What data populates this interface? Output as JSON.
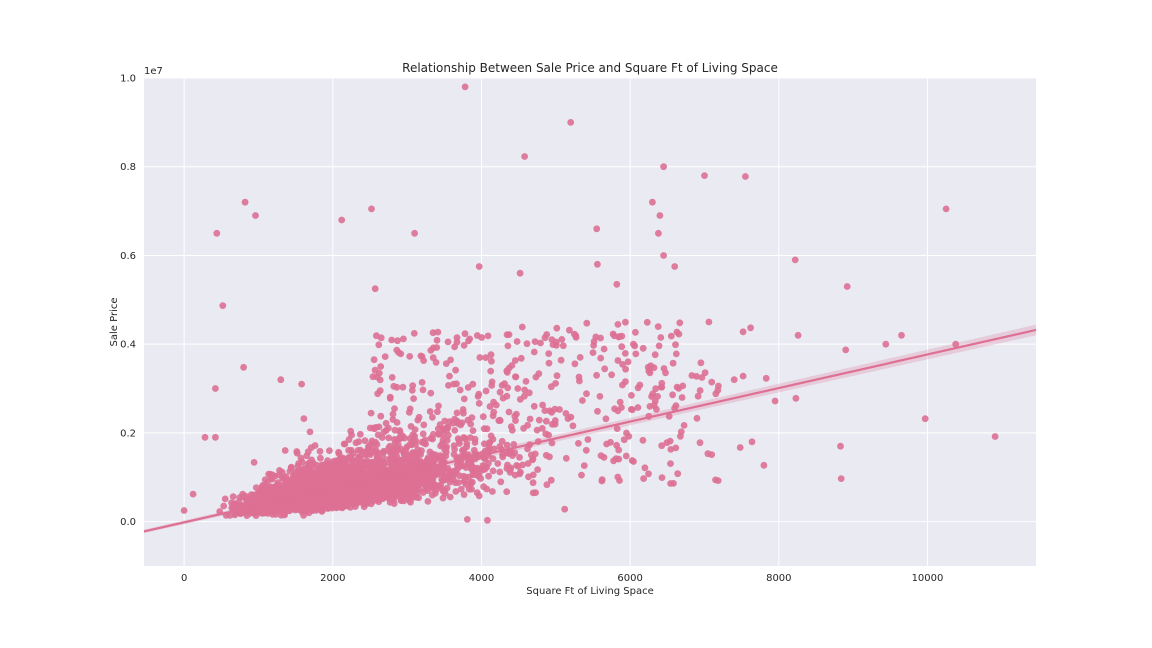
{
  "chart_data": {
    "type": "scatter",
    "title": "Relationship Between Sale Price and Square Ft of Living Space",
    "xlabel": "Square Ft of Living Space",
    "ylabel": "Sale Price",
    "y_multiplier_label": "1e7",
    "xlim": [
      -540,
      11460
    ],
    "ylim": [
      -0.1,
      1.0
    ],
    "x_ticks": [
      0,
      2000,
      4000,
      6000,
      8000,
      10000
    ],
    "y_ticks": [
      0.0,
      0.2,
      0.4,
      0.6,
      0.8,
      1.0
    ],
    "y_tick_labels": [
      "0.0",
      "0.2",
      "0.4",
      "0.6",
      "0.8",
      "1.0"
    ],
    "grid": true,
    "point_color": "#dd7093",
    "line_color": "#dd7093",
    "background_color": "#eaeaf2",
    "regression_line": {
      "x": [
        -540,
        11460
      ],
      "y": [
        -0.022,
        0.432
      ]
    },
    "regression_ci_halfwidth": [
      0.004,
      0.012
    ],
    "outlier_points": [
      {
        "x": 3780,
        "y": 0.98
      },
      {
        "x": 5200,
        "y": 0.9
      },
      {
        "x": 4580,
        "y": 0.823
      },
      {
        "x": 6450,
        "y": 0.8
      },
      {
        "x": 7000,
        "y": 0.78
      },
      {
        "x": 7550,
        "y": 0.778
      },
      {
        "x": 820,
        "y": 0.72
      },
      {
        "x": 960,
        "y": 0.69
      },
      {
        "x": 2520,
        "y": 0.705
      },
      {
        "x": 2120,
        "y": 0.68
      },
      {
        "x": 440,
        "y": 0.65
      },
      {
        "x": 3100,
        "y": 0.65
      },
      {
        "x": 6300,
        "y": 0.72
      },
      {
        "x": 6400,
        "y": 0.69
      },
      {
        "x": 6380,
        "y": 0.65
      },
      {
        "x": 5550,
        "y": 0.66
      },
      {
        "x": 6450,
        "y": 0.6
      },
      {
        "x": 6600,
        "y": 0.575
      },
      {
        "x": 5560,
        "y": 0.58
      },
      {
        "x": 10250,
        "y": 0.705
      },
      {
        "x": 8220,
        "y": 0.59
      },
      {
        "x": 8920,
        "y": 0.53
      },
      {
        "x": 520,
        "y": 0.487
      },
      {
        "x": 2570,
        "y": 0.525
      },
      {
        "x": 8260,
        "y": 0.42
      },
      {
        "x": 9650,
        "y": 0.42
      },
      {
        "x": 9440,
        "y": 0.4
      },
      {
        "x": 10380,
        "y": 0.4
      },
      {
        "x": 8900,
        "y": 0.387
      },
      {
        "x": 7060,
        "y": 0.45
      },
      {
        "x": 7620,
        "y": 0.437
      },
      {
        "x": 7520,
        "y": 0.428
      },
      {
        "x": 800,
        "y": 0.348
      },
      {
        "x": 420,
        "y": 0.3
      },
      {
        "x": 9970,
        "y": 0.232
      },
      {
        "x": 10910,
        "y": 0.192
      },
      {
        "x": 8830,
        "y": 0.17
      },
      {
        "x": 8840,
        "y": 0.097
      },
      {
        "x": 7800,
        "y": 0.127
      },
      {
        "x": 8230,
        "y": 0.278
      },
      {
        "x": 7950,
        "y": 0.272
      },
      {
        "x": 7830,
        "y": 0.323
      },
      {
        "x": 7480,
        "y": 0.167
      },
      {
        "x": 7640,
        "y": 0.18
      },
      {
        "x": 7400,
        "y": 0.32
      },
      {
        "x": 7520,
        "y": 0.328
      },
      {
        "x": 6900,
        "y": 0.233
      },
      {
        "x": 6940,
        "y": 0.178
      },
      {
        "x": 5120,
        "y": 0.028
      },
      {
        "x": 3810,
        "y": 0.005
      },
      {
        "x": 4080,
        "y": 0.003
      },
      {
        "x": 0,
        "y": 0.025
      },
      {
        "x": 120,
        "y": 0.062
      },
      {
        "x": 280,
        "y": 0.19
      },
      {
        "x": 420,
        "y": 0.19
      },
      {
        "x": 1300,
        "y": 0.32
      },
      {
        "x": 1580,
        "y": 0.31
      },
      {
        "x": 3970,
        "y": 0.575
      },
      {
        "x": 4520,
        "y": 0.56
      },
      {
        "x": 5820,
        "y": 0.535
      }
    ],
    "dense_cloud_description_points": 21613
  }
}
